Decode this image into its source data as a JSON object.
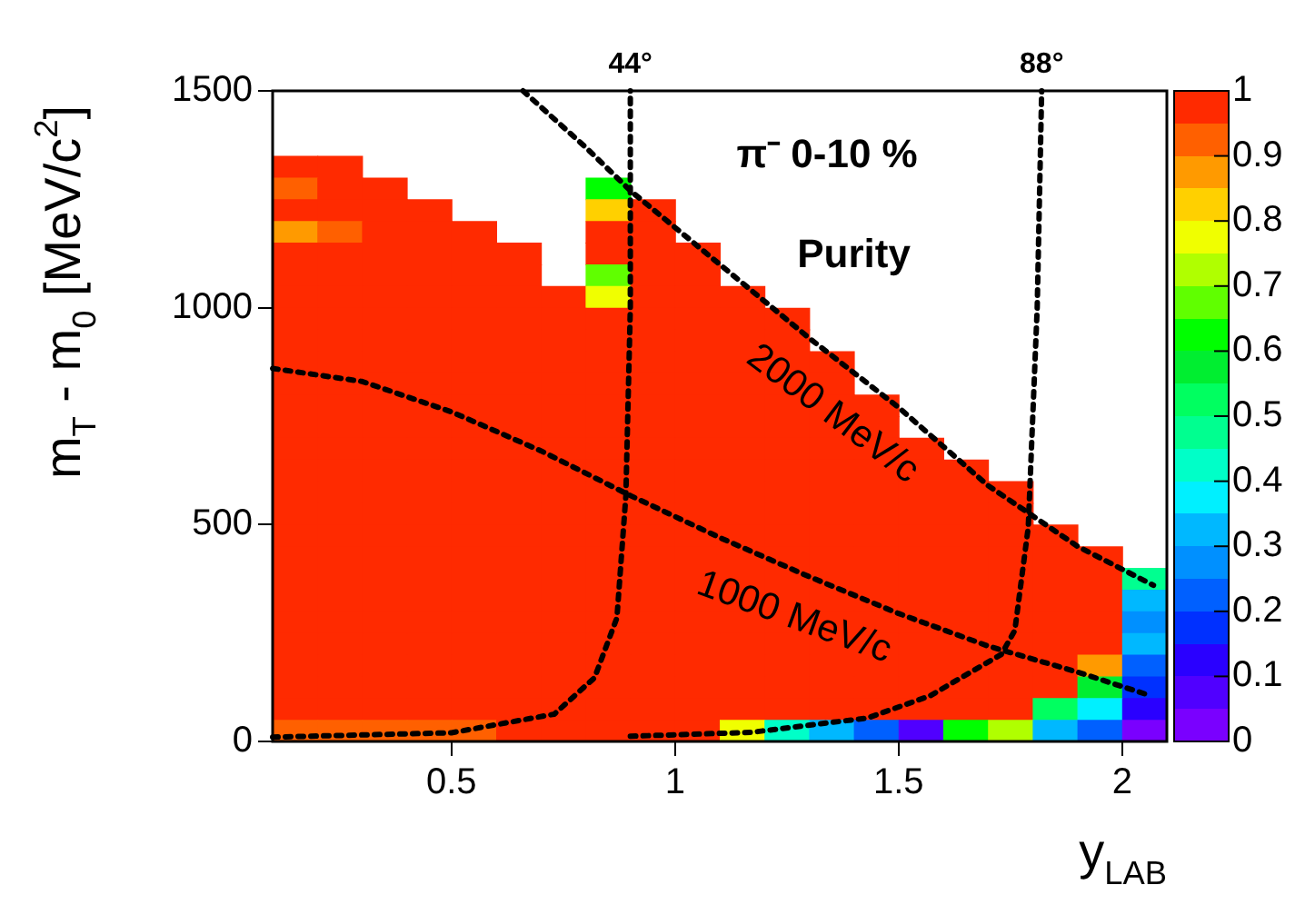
{
  "chart_data": {
    "type": "heatmap",
    "title": "π⁻ 0-10 %",
    "subtitle": "Purity",
    "xlabel": "y$_{LAB}$",
    "ylabel": "m$_{T}$ - m$_{0}$ [MeV/c$^{2}$]",
    "x": [
      0.15,
      0.25,
      0.35,
      0.45,
      0.55,
      0.65,
      0.75,
      0.85,
      0.95,
      1.05,
      1.15,
      1.25,
      1.35,
      1.45,
      1.55,
      1.65,
      1.75,
      1.85,
      1.95,
      2.05
    ],
    "y": [
      1325,
      1275,
      1225,
      1175,
      1125,
      1075,
      1025,
      975,
      925,
      875,
      825,
      775,
      725,
      675,
      625,
      575,
      525,
      475,
      425,
      375,
      325,
      275,
      225,
      175,
      125,
      75,
      25
    ],
    "xlim": [
      0.1,
      2.1
    ],
    "ylim": [
      0,
      1500
    ],
    "xticks": [
      0.5,
      1,
      1.5,
      2
    ],
    "yticks": [
      0,
      500,
      1000,
      1500
    ],
    "clim": [
      0,
      1
    ],
    "cticks": [
      0,
      0.1,
      0.2,
      0.3,
      0.4,
      0.5,
      0.6,
      0.7,
      0.8,
      0.9,
      1
    ],
    "cells": [
      [
        1,
        1,
        null,
        null,
        null,
        null,
        null,
        null,
        null,
        null,
        null,
        null,
        null,
        null,
        null,
        null,
        null,
        null,
        null,
        null
      ],
      [
        0.9,
        1,
        1,
        null,
        null,
        null,
        null,
        0.6,
        null,
        null,
        null,
        null,
        null,
        null,
        null,
        null,
        null,
        null,
        null,
        null
      ],
      [
        1,
        1,
        1,
        1,
        null,
        null,
        null,
        0.8,
        1,
        null,
        null,
        null,
        null,
        null,
        null,
        null,
        null,
        null,
        null,
        null
      ],
      [
        0.85,
        0.9,
        1,
        1,
        1,
        null,
        null,
        1,
        1,
        null,
        null,
        null,
        null,
        null,
        null,
        null,
        null,
        null,
        null,
        null
      ],
      [
        1,
        1,
        1,
        1,
        1,
        1,
        null,
        1,
        1,
        1,
        null,
        null,
        null,
        null,
        null,
        null,
        null,
        null,
        null,
        null
      ],
      [
        1,
        1,
        1,
        1,
        1,
        1,
        null,
        0.65,
        1,
        1,
        null,
        null,
        null,
        null,
        null,
        null,
        null,
        null,
        null,
        null
      ],
      [
        1,
        1,
        1,
        1,
        1,
        1,
        1,
        0.75,
        1,
        1,
        1,
        null,
        null,
        null,
        null,
        null,
        null,
        null,
        null,
        null
      ],
      [
        1,
        1,
        1,
        1,
        1,
        1,
        1,
        1,
        1,
        1,
        1,
        1,
        null,
        null,
        null,
        null,
        null,
        null,
        null,
        null
      ],
      [
        1,
        1,
        1,
        1,
        1,
        1,
        1,
        1,
        1,
        1,
        1,
        1,
        null,
        null,
        null,
        null,
        null,
        null,
        null,
        null
      ],
      [
        1,
        1,
        1,
        1,
        1,
        1,
        1,
        1,
        1,
        1,
        1,
        1,
        1,
        null,
        null,
        null,
        null,
        null,
        null,
        null
      ],
      [
        1,
        1,
        1,
        1,
        1,
        1,
        1,
        1,
        1,
        1,
        1,
        1,
        1,
        null,
        null,
        null,
        null,
        null,
        null,
        null
      ],
      [
        1,
        1,
        1,
        1,
        1,
        1,
        1,
        1,
        1,
        1,
        1,
        1,
        1,
        1,
        null,
        null,
        null,
        null,
        null,
        null
      ],
      [
        1,
        1,
        1,
        1,
        1,
        1,
        1,
        1,
        1,
        1,
        1,
        1,
        1,
        1,
        null,
        null,
        null,
        null,
        null,
        null
      ],
      [
        1,
        1,
        1,
        1,
        1,
        1,
        1,
        1,
        1,
        1,
        1,
        1,
        1,
        1,
        1,
        null,
        null,
        null,
        null,
        null
      ],
      [
        1,
        1,
        1,
        1,
        1,
        1,
        1,
        1,
        1,
        1,
        1,
        1,
        1,
        1,
        1,
        1,
        null,
        null,
        null,
        null
      ],
      [
        1,
        1,
        1,
        1,
        1,
        1,
        1,
        1,
        1,
        1,
        1,
        1,
        1,
        1,
        1,
        1,
        1,
        null,
        null,
        null
      ],
      [
        1,
        1,
        1,
        1,
        1,
        1,
        1,
        1,
        1,
        1,
        1,
        1,
        1,
        1,
        1,
        1,
        1,
        null,
        null,
        null
      ],
      [
        1,
        1,
        1,
        1,
        1,
        1,
        1,
        1,
        1,
        1,
        1,
        1,
        1,
        1,
        1,
        1,
        1,
        1,
        null,
        null
      ],
      [
        1,
        1,
        1,
        1,
        1,
        1,
        1,
        1,
        1,
        1,
        1,
        1,
        1,
        1,
        1,
        1,
        1,
        1,
        1,
        null
      ],
      [
        1,
        1,
        1,
        1,
        1,
        1,
        1,
        1,
        1,
        1,
        1,
        1,
        1,
        1,
        1,
        1,
        1,
        1,
        1,
        0.475
      ],
      [
        1,
        1,
        1,
        1,
        1,
        1,
        1,
        1,
        1,
        1,
        1,
        1,
        1,
        1,
        1,
        1,
        1,
        1,
        1,
        0.325
      ],
      [
        1,
        1,
        1,
        1,
        1,
        1,
        1,
        1,
        1,
        1,
        1,
        1,
        1,
        1,
        1,
        1,
        1,
        1,
        1,
        0.275
      ],
      [
        1,
        1,
        1,
        1,
        1,
        1,
        1,
        1,
        1,
        1,
        1,
        1,
        1,
        1,
        1,
        1,
        1,
        1,
        1,
        0.3
      ],
      [
        1,
        1,
        1,
        1,
        1,
        1,
        1,
        1,
        1,
        1,
        1,
        1,
        1,
        1,
        1,
        1,
        1,
        1,
        0.85,
        0.225
      ],
      [
        1,
        1,
        1,
        1,
        1,
        1,
        1,
        1,
        1,
        1,
        1,
        1,
        1,
        1,
        1,
        1,
        1,
        1,
        0.575,
        0.175
      ],
      [
        0.95,
        0.95,
        1,
        1,
        1,
        1,
        1,
        1,
        1,
        1,
        1,
        1,
        1,
        1,
        1,
        1,
        1,
        0.525,
        0.35,
        0.125
      ],
      [
        0.9,
        0.9,
        0.9,
        0.9,
        0.9,
        0.95,
        0.95,
        1,
        1,
        1,
        0.75,
        0.4,
        0.3,
        0.225,
        0.075,
        0.6,
        0.7,
        0.3,
        0.2,
        0.025
      ]
    ],
    "series": [
      {
        "type": "line",
        "color": "#000000",
        "x": [
          0.66,
          0.8,
          0.9,
          1.1,
          1.3,
          1.5,
          1.7,
          1.9,
          2.07
        ],
        "values": [
          1500,
          1370,
          1270,
          1100,
          930,
          770,
          590,
          450,
          360
        ]
      },
      {
        "type": "line",
        "color": "#000000",
        "x": [
          0.1,
          0.3,
          0.5,
          0.7,
          0.9,
          1.1,
          1.3,
          1.5,
          1.7,
          1.9,
          2.05
        ],
        "values": [
          860,
          830,
          760,
          670,
          567,
          470,
          380,
          295,
          220,
          160,
          110
        ]
      },
      {
        "type": "line",
        "color": "#000000",
        "x": [
          0.1,
          0.5,
          0.73,
          0.82,
          0.87,
          0.89,
          0.9,
          0.9
        ],
        "values": [
          10,
          20,
          63,
          147,
          285,
          566,
          1000,
          1500
        ]
      },
      {
        "type": "line",
        "color": "#000000",
        "x": [
          0.9,
          1.17,
          1.43,
          1.57,
          1.73,
          1.76,
          1.79,
          1.81,
          1.82
        ],
        "values": [
          12,
          21,
          54,
          105,
          201,
          256,
          494,
          1000,
          1500
        ]
      }
    ],
    "annotations": [
      {
        "text": "44°",
        "x": 0.9,
        "y": 1500
      },
      {
        "text": "88°",
        "x": 1.82,
        "y": 1500
      },
      "2000 MeV/c",
      "1000 MeV/c"
    ],
    "marker": "none",
    "line_style": "dotted",
    "grid": false,
    "legend": false
  }
}
